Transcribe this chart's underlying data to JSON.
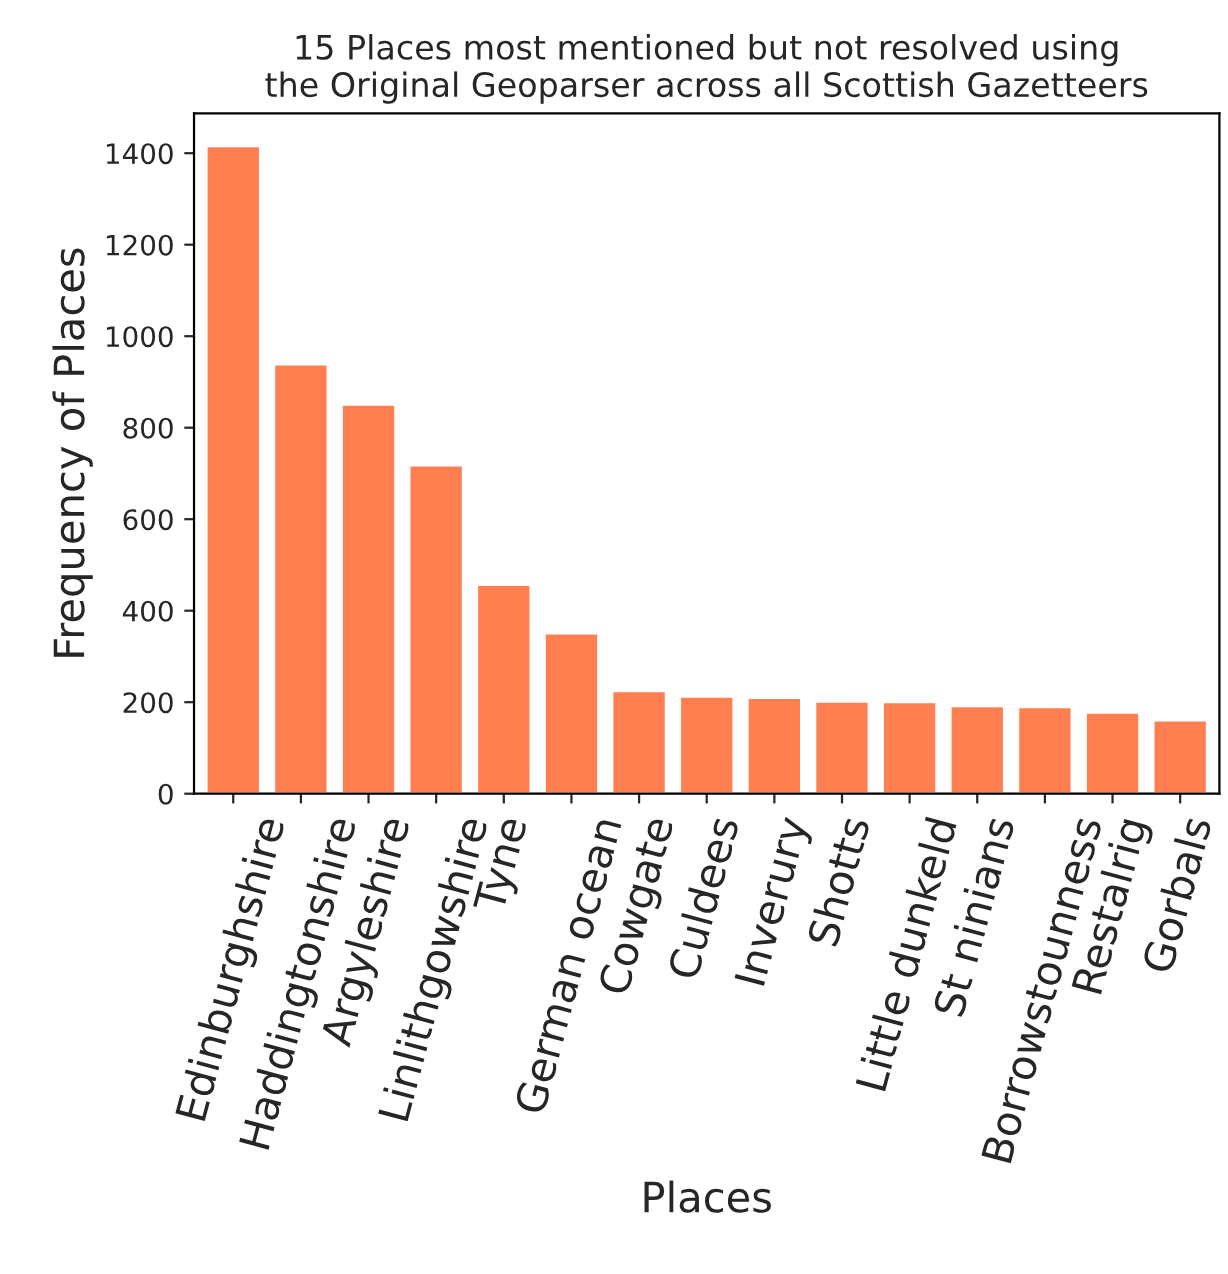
{
  "chart_data": {
    "type": "bar",
    "title": "15 Places most mentioned but not resolved using\nthe Original Geoparser across all Scottish Gazetteers",
    "xlabel": "Places",
    "ylabel": "Frequency of Places",
    "categories": [
      "Edinburghshire",
      "Haddingtonshire",
      "Argyleshire",
      "Linlithgowshire",
      "Tyne",
      "German ocean",
      "Cowgate",
      "Culdees",
      "Inverury",
      "Shotts",
      "Little dunkeld",
      "St ninians",
      "Borrowstounness",
      "Restalrig",
      "Gorbals"
    ],
    "values": [
      1416,
      939,
      851,
      718,
      457,
      351,
      225,
      213,
      210,
      202,
      201,
      192,
      190,
      178,
      161
    ],
    "color": "#ff7f50",
    "ylim": [
      0,
      1487
    ],
    "yticks": [
      0,
      200,
      400,
      600,
      800,
      1000,
      1200,
      1400
    ],
    "grid": false,
    "legend": false
  }
}
